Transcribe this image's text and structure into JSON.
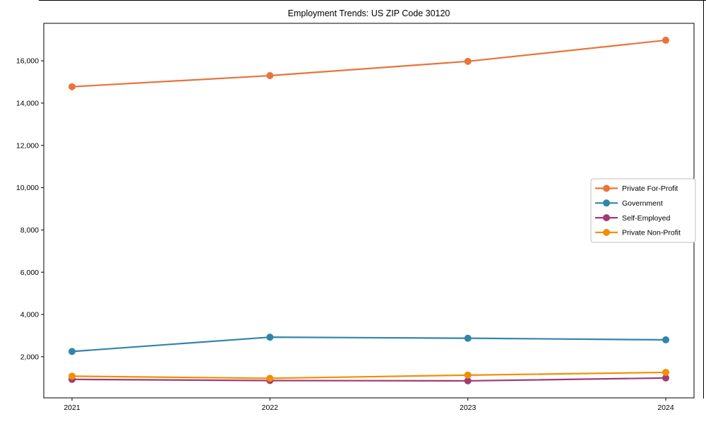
{
  "figure": {
    "title": "Employment Trends: US ZIP Code 30120"
  },
  "chart_data": {
    "type": "line",
    "title": "Employment Trends: US ZIP Code 30120",
    "categories": [
      "2021",
      "2022",
      "2023",
      "2024"
    ],
    "series": [
      {
        "name": "Private For-Profit",
        "color": "#E8743B",
        "values": [
          14775,
          15300,
          15975,
          16975
        ]
      },
      {
        "name": "Government",
        "color": "#2E86AB",
        "values": [
          2250,
          2925,
          2875,
          2800
        ]
      },
      {
        "name": "Self-Employed",
        "color": "#A23B72",
        "values": [
          930,
          875,
          860,
          995
        ]
      },
      {
        "name": "Private Non-Profit",
        "color": "#F18F01",
        "values": [
          1080,
          980,
          1130,
          1260
        ]
      }
    ],
    "xlabel": "",
    "ylabel": "",
    "ylim": [
      55,
      17775
    ],
    "yticks": [
      2000,
      4000,
      6000,
      8000,
      10000,
      12000,
      14000,
      16000
    ],
    "grid": false,
    "legend_position": "center-right",
    "marker": "circle",
    "axis_color": "#000000",
    "tick_label_color": "#000000",
    "legend_border_color": "#bfbfbf"
  }
}
